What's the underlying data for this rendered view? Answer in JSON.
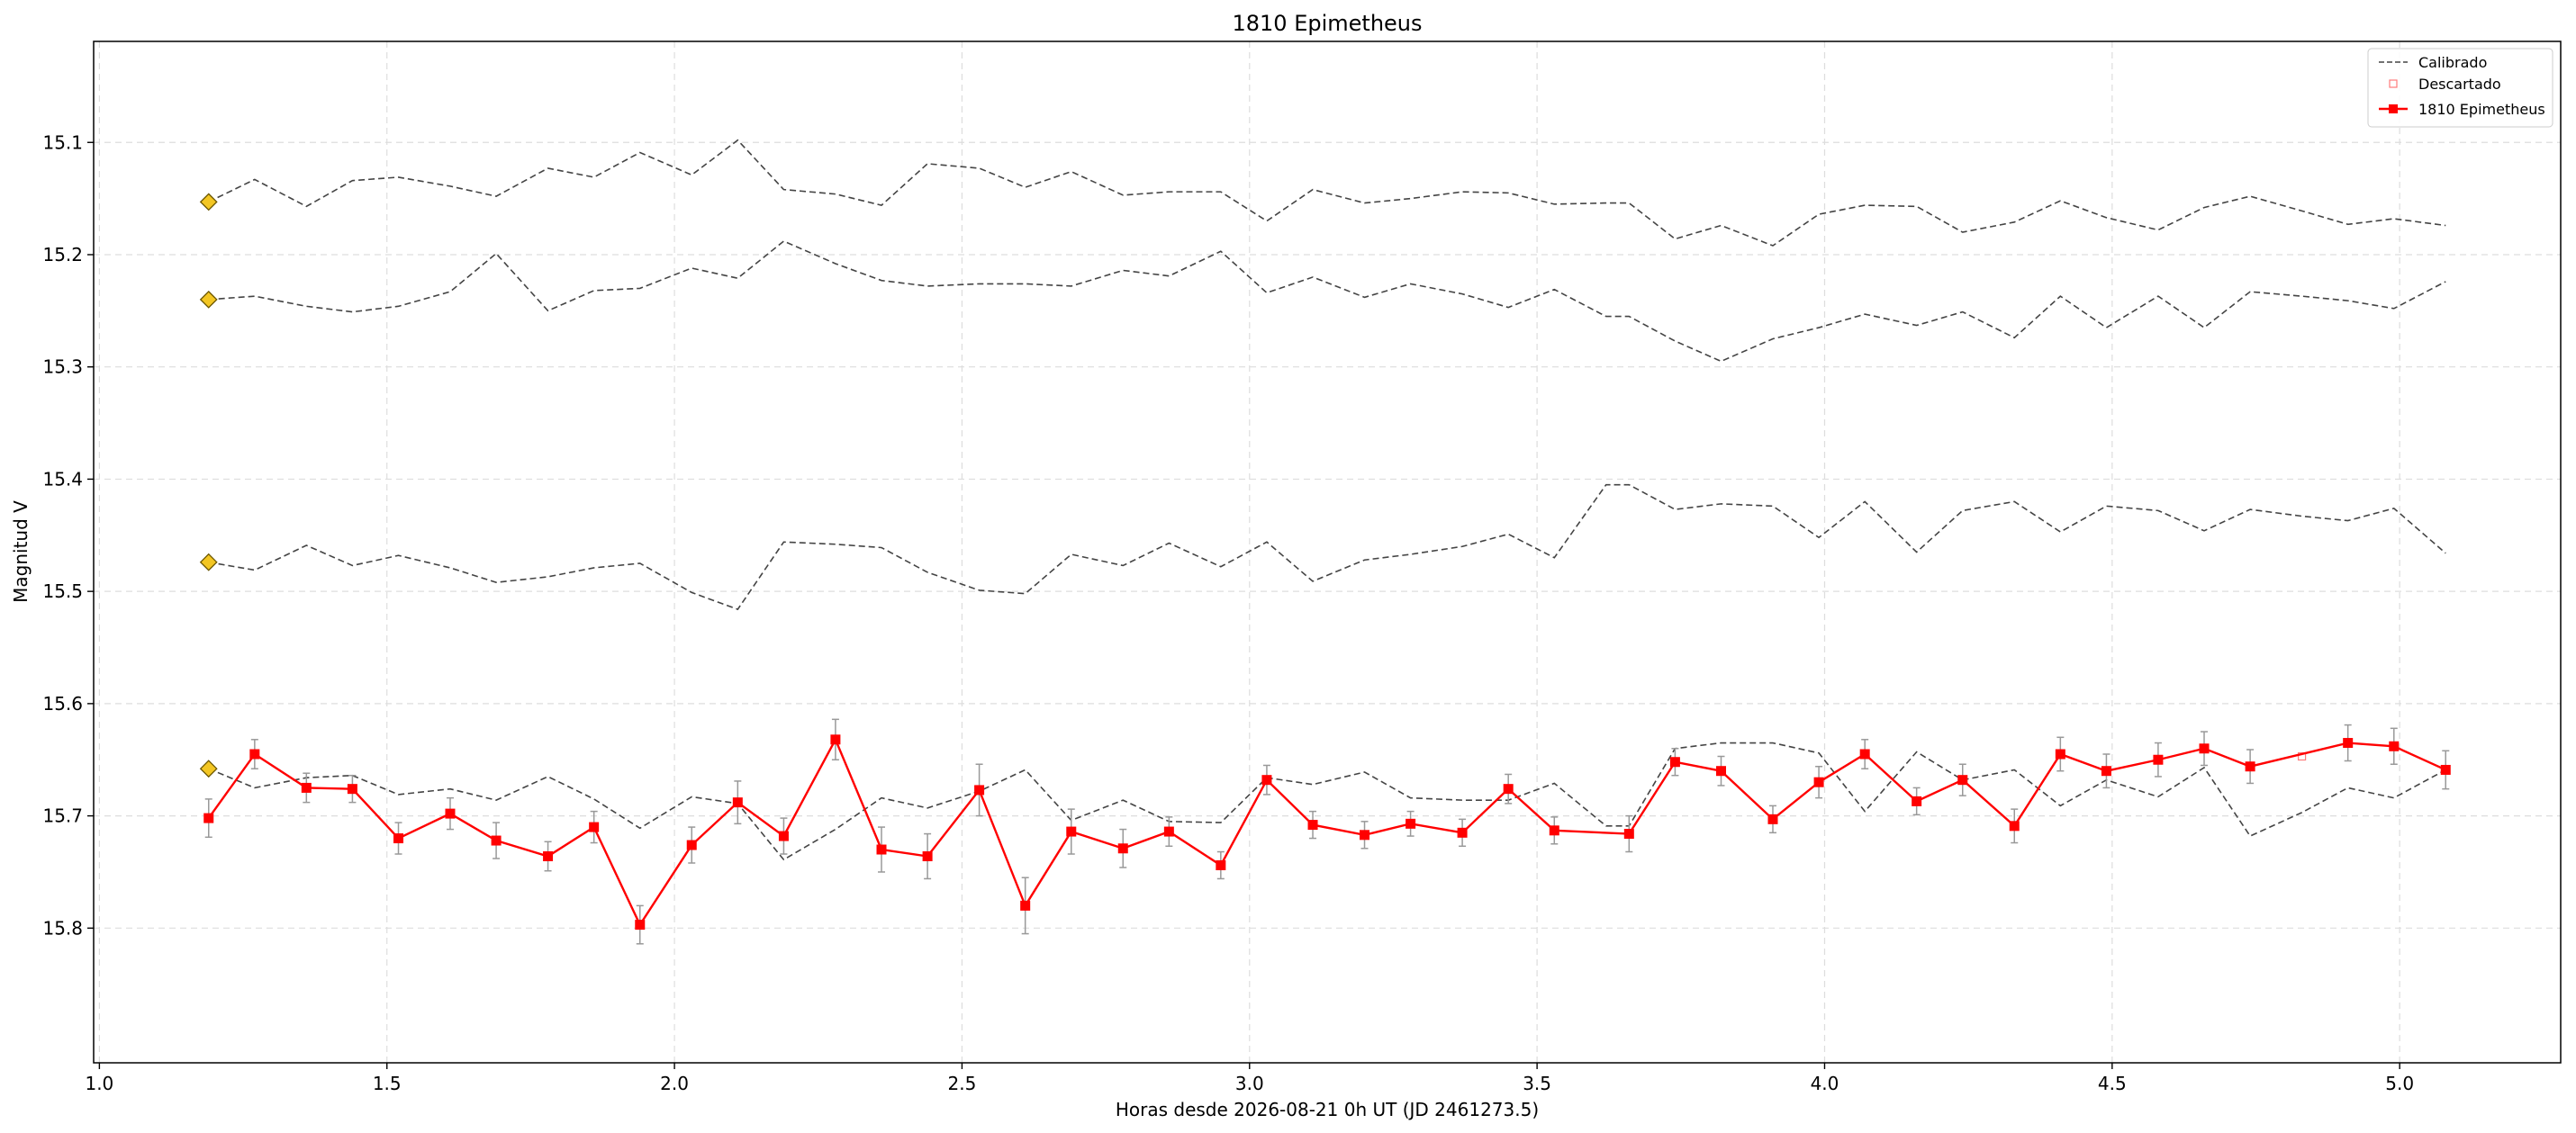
{
  "chart_data": {
    "type": "line",
    "title": "1810 Epimetheus",
    "xlabel": "Horas desde 2026-08-21 0h UT (JD 2461273.5)",
    "ylabel": "Magnitud V",
    "xlim": [
      0.99,
      5.28
    ],
    "ylim": [
      15.92,
      15.01
    ],
    "y_inverted": true,
    "grid": true,
    "legend_position": "top-right",
    "xticks": [
      "1.0",
      "1.5",
      "2.0",
      "2.5",
      "3.0",
      "3.5",
      "4.0",
      "4.5",
      "5.0"
    ],
    "xtick_values": [
      1.0,
      1.5,
      2.0,
      2.5,
      3.0,
      3.5,
      4.0,
      4.5,
      5.0
    ],
    "yticks": [
      "15.1",
      "15.2",
      "15.3",
      "15.4",
      "15.5",
      "15.6",
      "15.7",
      "15.8"
    ],
    "ytick_values": [
      15.1,
      15.2,
      15.3,
      15.4,
      15.5,
      15.6,
      15.7,
      15.8
    ],
    "legend": [
      "Calibrado",
      "Descartado",
      "1810 Epimetheus"
    ],
    "colors": {
      "calibrado": "#444444",
      "descartado": "#ff7b7b",
      "target": "#ff0000",
      "errorbar": "#999999",
      "diamond_fill": "#f3c623",
      "diamond_stroke": "#6b5600",
      "grid": "#dddddd"
    },
    "x": [
      1.19,
      1.27,
      1.36,
      1.44,
      1.52,
      1.61,
      1.69,
      1.78,
      1.86,
      1.94,
      2.03,
      2.11,
      2.19,
      2.28,
      2.36,
      2.44,
      2.53,
      2.61,
      2.69,
      2.78,
      2.86,
      2.95,
      3.03,
      3.11,
      3.2,
      3.28,
      3.37,
      3.45,
      3.53,
      3.62,
      3.66,
      3.74,
      3.82,
      3.91,
      3.99,
      4.07,
      4.16,
      4.24,
      4.33,
      4.41,
      4.49,
      4.58,
      4.66,
      4.74,
      4.83,
      4.91,
      4.99,
      5.08
    ],
    "comparison_series": [
      {
        "values": [
          15.153,
          15.133,
          15.157,
          15.134,
          15.131,
          15.139,
          15.148,
          15.123,
          15.131,
          15.109,
          15.129,
          15.098,
          15.142,
          15.146,
          15.156,
          15.119,
          15.123,
          15.14,
          15.126,
          15.147,
          15.144,
          15.144,
          15.17,
          15.142,
          15.154,
          15.15,
          15.144,
          15.145,
          15.155,
          15.154,
          15.154,
          15.186,
          15.174,
          15.192,
          15.164,
          15.156,
          15.157,
          15.18,
          15.171,
          15.152,
          15.167,
          15.178,
          15.158,
          15.148,
          15.161,
          15.173,
          15.168,
          15.174
        ]
      },
      {
        "values": [
          15.24,
          15.237,
          15.246,
          15.251,
          15.246,
          15.233,
          15.199,
          15.25,
          15.232,
          15.23,
          15.212,
          15.221,
          15.188,
          15.208,
          15.223,
          15.228,
          15.226,
          15.226,
          15.228,
          15.214,
          15.219,
          15.197,
          15.234,
          15.22,
          15.238,
          15.226,
          15.235,
          15.247,
          15.231,
          15.255,
          15.255,
          15.277,
          15.295,
          15.275,
          15.265,
          15.253,
          15.263,
          15.251,
          15.274,
          15.237,
          15.265,
          15.237,
          15.265,
          15.233,
          15.237,
          15.241,
          15.248,
          15.224
        ]
      },
      {
        "values": [
          15.474,
          15.481,
          15.459,
          15.477,
          15.468,
          15.479,
          15.492,
          15.487,
          15.479,
          15.475,
          15.501,
          15.516,
          15.456,
          15.458,
          15.461,
          15.483,
          15.499,
          15.502,
          15.467,
          15.477,
          15.457,
          15.478,
          15.456,
          15.491,
          15.472,
          15.467,
          15.46,
          15.449,
          15.47,
          15.405,
          15.405,
          15.427,
          15.422,
          15.424,
          15.452,
          15.42,
          15.465,
          15.428,
          15.42,
          15.447,
          15.424,
          15.428,
          15.446,
          15.427,
          15.433,
          15.437,
          15.426,
          15.466
        ]
      },
      {
        "values": [
          15.658,
          15.675,
          15.666,
          15.664,
          15.681,
          15.676,
          15.686,
          15.665,
          15.685,
          15.711,
          15.683,
          15.689,
          15.739,
          15.712,
          15.684,
          15.693,
          15.678,
          15.659,
          15.704,
          15.686,
          15.705,
          15.706,
          15.666,
          15.672,
          15.661,
          15.684,
          15.686,
          15.686,
          15.671,
          15.709,
          15.709,
          15.64,
          15.635,
          15.635,
          15.644,
          15.696,
          15.643,
          15.668,
          15.659,
          15.691,
          15.668,
          15.683,
          15.657,
          15.718,
          15.697,
          15.675,
          15.684,
          15.659
        ]
      }
    ],
    "comparison_start_diamonds": [
      15.153,
      15.24,
      15.474,
      15.658
    ],
    "target_series": {
      "name": "1810 Epimetheus",
      "x": [
        1.19,
        1.27,
        1.36,
        1.44,
        1.52,
        1.61,
        1.69,
        1.78,
        1.86,
        1.94,
        2.03,
        2.11,
        2.19,
        2.28,
        2.36,
        2.44,
        2.53,
        2.61,
        2.69,
        2.78,
        2.86,
        2.95,
        3.03,
        3.11,
        3.2,
        3.28,
        3.37,
        3.45,
        3.53,
        3.66,
        3.74,
        3.82,
        3.91,
        3.99,
        4.07,
        4.16,
        4.24,
        4.33,
        4.41,
        4.49,
        4.58,
        4.66,
        4.74,
        4.91,
        4.99,
        5.08
      ],
      "values": [
        15.702,
        15.645,
        15.675,
        15.676,
        15.72,
        15.698,
        15.722,
        15.736,
        15.71,
        15.797,
        15.726,
        15.688,
        15.718,
        15.632,
        15.73,
        15.736,
        15.677,
        15.78,
        15.714,
        15.729,
        15.714,
        15.744,
        15.668,
        15.708,
        15.717,
        15.707,
        15.715,
        15.676,
        15.713,
        15.716,
        15.652,
        15.66,
        15.703,
        15.67,
        15.645,
        15.687,
        15.668,
        15.709,
        15.645,
        15.66,
        15.65,
        15.64,
        15.656,
        15.635,
        15.638,
        15.659
      ],
      "errors": [
        0.017,
        0.013,
        0.013,
        0.012,
        0.014,
        0.014,
        0.016,
        0.013,
        0.014,
        0.017,
        0.016,
        0.019,
        0.016,
        0.018,
        0.02,
        0.02,
        0.023,
        0.025,
        0.02,
        0.017,
        0.013,
        0.012,
        0.013,
        0.012,
        0.012,
        0.011,
        0.012,
        0.013,
        0.012,
        0.016,
        0.012,
        0.013,
        0.012,
        0.014,
        0.013,
        0.012,
        0.014,
        0.015,
        0.015,
        0.015,
        0.015,
        0.015,
        0.015,
        0.016,
        0.016,
        0.017
      ]
    },
    "discarded_points": [
      {
        "x": 4.83,
        "y": 15.647
      }
    ]
  }
}
